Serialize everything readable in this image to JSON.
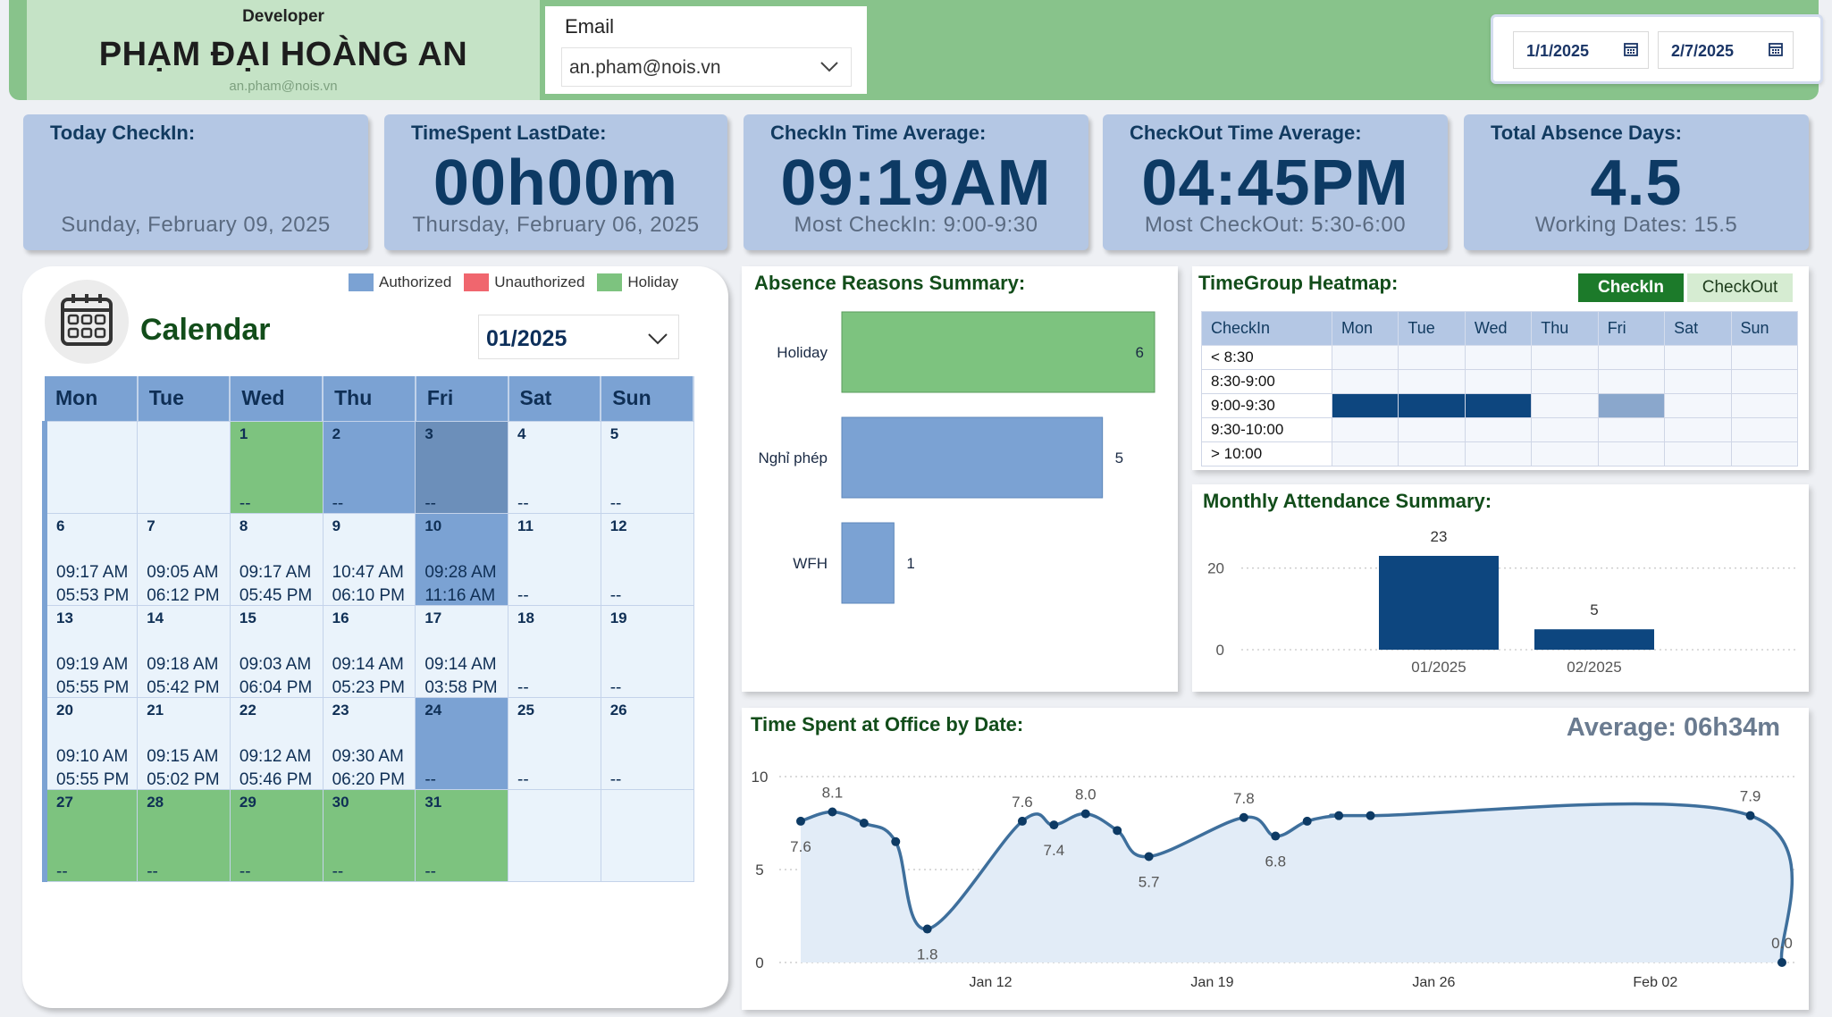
{
  "header": {
    "role": "Developer",
    "name": "PHẠM ĐẠI HOÀNG AN",
    "sub_email": "an.pham@nois.vn",
    "email_label": "Email",
    "email_value": "an.pham@nois.vn",
    "date_from": "1/1/2025",
    "date_to": "2/7/2025"
  },
  "kpis": {
    "today_checkin": {
      "title": "Today CheckIn:",
      "value": "",
      "sub": "Sunday, February 09, 2025"
    },
    "timespent_lastdate": {
      "title": "TimeSpent LastDate:",
      "value": "00h00m",
      "sub": "Thursday, February 06, 2025"
    },
    "checkin_avg": {
      "title": "CheckIn Time Average:",
      "value": "09:19AM",
      "sub": "Most CheckIn: 9:00-9:30"
    },
    "checkout_avg": {
      "title": "CheckOut Time Average:",
      "value": "04:45PM",
      "sub": "Most CheckOut: 5:30-6:00"
    },
    "absence_days": {
      "title": "Total Absence Days:",
      "value": "4.5",
      "sub": "Working Dates: 15.5"
    }
  },
  "calendar": {
    "title": "Calendar",
    "month": "01/2025",
    "legend": [
      {
        "label": "Authorized",
        "color": "#7ba2d3"
      },
      {
        "label": "Unauthorized",
        "color": "#f0666e"
      },
      {
        "label": "Holiday",
        "color": "#7dc37f"
      }
    ],
    "weekdays": [
      "Mon",
      "Tue",
      "Wed",
      "Thu",
      "Fri",
      "Sat",
      "Sun"
    ],
    "weeks": [
      [
        {
          "day": "",
          "in": "",
          "out": "",
          "status": "empty"
        },
        {
          "day": "",
          "in": "",
          "out": "",
          "status": "empty"
        },
        {
          "day": "1",
          "in": "",
          "out": "--",
          "status": "holiday"
        },
        {
          "day": "2",
          "in": "",
          "out": "--",
          "status": "auth"
        },
        {
          "day": "3",
          "in": "",
          "out": "--",
          "status": "auth-dark"
        },
        {
          "day": "4",
          "in": "",
          "out": "--",
          "status": "normal"
        },
        {
          "day": "5",
          "in": "",
          "out": "--",
          "status": "normal"
        }
      ],
      [
        {
          "day": "6",
          "in": "09:17 AM",
          "out": "05:53 PM",
          "status": "normal"
        },
        {
          "day": "7",
          "in": "09:05 AM",
          "out": "06:12 PM",
          "status": "normal"
        },
        {
          "day": "8",
          "in": "09:17 AM",
          "out": "05:45 PM",
          "status": "normal"
        },
        {
          "day": "9",
          "in": "10:47 AM",
          "out": "06:10 PM",
          "status": "normal"
        },
        {
          "day": "10",
          "in": "09:28 AM",
          "out": "11:16 AM",
          "status": "auth"
        },
        {
          "day": "11",
          "in": "",
          "out": "--",
          "status": "normal"
        },
        {
          "day": "12",
          "in": "",
          "out": "--",
          "status": "normal"
        }
      ],
      [
        {
          "day": "13",
          "in": "09:19 AM",
          "out": "05:55 PM",
          "status": "normal"
        },
        {
          "day": "14",
          "in": "09:18 AM",
          "out": "05:42 PM",
          "status": "normal"
        },
        {
          "day": "15",
          "in": "09:03 AM",
          "out": "06:04 PM",
          "status": "normal"
        },
        {
          "day": "16",
          "in": "09:14 AM",
          "out": "05:23 PM",
          "status": "normal"
        },
        {
          "day": "17",
          "in": "09:14 AM",
          "out": "03:58 PM",
          "status": "normal"
        },
        {
          "day": "18",
          "in": "",
          "out": "--",
          "status": "normal"
        },
        {
          "day": "19",
          "in": "",
          "out": "--",
          "status": "normal"
        }
      ],
      [
        {
          "day": "20",
          "in": "09:10 AM",
          "out": "05:55 PM",
          "status": "normal"
        },
        {
          "day": "21",
          "in": "09:15 AM",
          "out": "05:02 PM",
          "status": "normal"
        },
        {
          "day": "22",
          "in": "09:12 AM",
          "out": "05:46 PM",
          "status": "normal"
        },
        {
          "day": "23",
          "in": "09:30 AM",
          "out": "06:20 PM",
          "status": "normal"
        },
        {
          "day": "24",
          "in": "",
          "out": "--",
          "status": "auth"
        },
        {
          "day": "25",
          "in": "",
          "out": "--",
          "status": "normal"
        },
        {
          "day": "26",
          "in": "",
          "out": "--",
          "status": "normal"
        }
      ],
      [
        {
          "day": "27",
          "in": "",
          "out": "--",
          "status": "holiday"
        },
        {
          "day": "28",
          "in": "",
          "out": "--",
          "status": "holiday"
        },
        {
          "day": "29",
          "in": "",
          "out": "--",
          "status": "holiday"
        },
        {
          "day": "30",
          "in": "",
          "out": "--",
          "status": "holiday"
        },
        {
          "day": "31",
          "in": "",
          "out": "--",
          "status": "holiday"
        },
        {
          "day": "",
          "in": "",
          "out": "",
          "status": "empty"
        },
        {
          "day": "",
          "in": "",
          "out": "",
          "status": "empty"
        }
      ]
    ]
  },
  "absence_reasons": {
    "title": "Absence Reasons Summary:",
    "chart_data": {
      "type": "bar",
      "orientation": "horizontal",
      "categories": [
        "Holiday",
        "Nghỉ phép",
        "WFH"
      ],
      "values": [
        6,
        5,
        1
      ],
      "colors": [
        "#7dc37f",
        "#7ba2d3",
        "#7ba2d3"
      ]
    }
  },
  "heatmap": {
    "title": "TimeGroup Heatmap:",
    "toggle_active": "CheckIn",
    "toggle_inactive": "CheckOut",
    "columns": [
      "CheckIn",
      "Mon",
      "Tue",
      "Wed",
      "Thu",
      "Fri",
      "Sat",
      "Sun"
    ],
    "rows": [
      {
        "label": "< 8:30",
        "cells": [
          0,
          0,
          0,
          0,
          0,
          0,
          0
        ]
      },
      {
        "label": "8:30-9:00",
        "cells": [
          0,
          0,
          0,
          0,
          0,
          0,
          0
        ]
      },
      {
        "label": "9:00-9:30",
        "cells": [
          2,
          2,
          2,
          0,
          1,
          0,
          0
        ]
      },
      {
        "label": "9:30-10:00",
        "cells": [
          0,
          0,
          0,
          0,
          0,
          0,
          0
        ]
      },
      {
        "label": "> 10:00",
        "cells": [
          0,
          0,
          0,
          0,
          0,
          0,
          0
        ]
      }
    ]
  },
  "monthly_attendance": {
    "title": "Monthly Attendance Summary:",
    "chart_data": {
      "type": "bar",
      "categories": [
        "01/2025",
        "02/2025"
      ],
      "values": [
        23,
        5
      ],
      "ylim": [
        0,
        25
      ],
      "yticks": [
        0,
        20
      ],
      "color": "#0d467f"
    }
  },
  "time_spent": {
    "title": "Time Spent at Office by Date:",
    "average_label": "Average: 06h34m",
    "chart_data": {
      "type": "area",
      "x": [
        "2025-01-06",
        "2025-01-07",
        "2025-01-08",
        "2025-01-09",
        "2025-01-10",
        "2025-01-13",
        "2025-01-14",
        "2025-01-15",
        "2025-01-16",
        "2025-01-17",
        "2025-01-20",
        "2025-01-21",
        "2025-01-22",
        "2025-01-23",
        "2025-01-24",
        "2025-02-05",
        "2025-02-06"
      ],
      "values": [
        7.6,
        8.1,
        7.5,
        6.5,
        1.8,
        7.6,
        7.4,
        8.0,
        7.1,
        5.7,
        7.8,
        6.8,
        7.6,
        7.9,
        7.9,
        7.9,
        0.0
      ],
      "data_labels": [
        {
          "index": 0,
          "text": "7.6",
          "pos": "below"
        },
        {
          "index": 1,
          "text": "8.1",
          "pos": "above"
        },
        {
          "index": 4,
          "text": "1.8",
          "pos": "below"
        },
        {
          "index": 5,
          "text": "7.6",
          "pos": "above"
        },
        {
          "index": 6,
          "text": "7.4",
          "pos": "below"
        },
        {
          "index": 7,
          "text": "8.0",
          "pos": "above"
        },
        {
          "index": 9,
          "text": "5.7",
          "pos": "below"
        },
        {
          "index": 10,
          "text": "7.8",
          "pos": "above"
        },
        {
          "index": 11,
          "text": "6.8",
          "pos": "below"
        },
        {
          "index": 15,
          "text": "7.9",
          "pos": "above"
        },
        {
          "index": 16,
          "text": "0.0",
          "pos": "above"
        }
      ],
      "xticks": [
        {
          "date": "2025-01-12",
          "label": "Jan 12"
        },
        {
          "date": "2025-01-19",
          "label": "Jan 19"
        },
        {
          "date": "2025-01-26",
          "label": "Jan 26"
        },
        {
          "date": "2025-02-02",
          "label": "Feb 02"
        }
      ],
      "xlim": [
        "2025-01-06",
        "2025-02-06"
      ],
      "ylim": [
        0,
        10
      ],
      "yticks": [
        0,
        5,
        10
      ],
      "line_color": "#3e6f9c",
      "fill_color": "#e2ecf7"
    }
  }
}
